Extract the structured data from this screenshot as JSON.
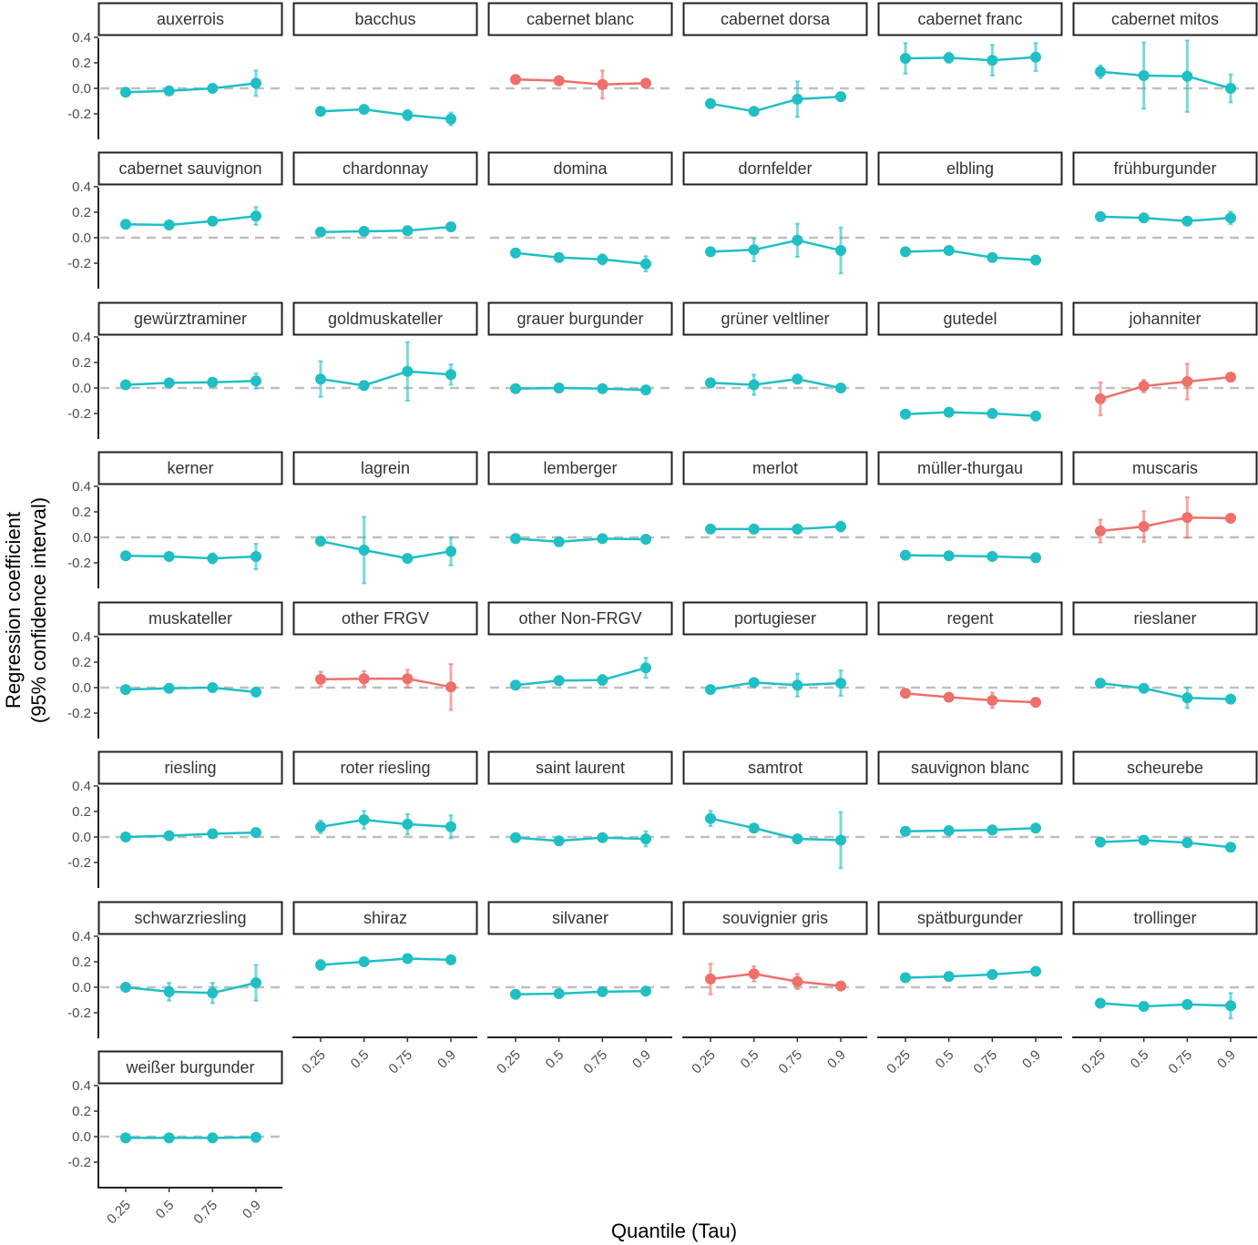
{
  "chart_data": {
    "type": "line",
    "xlabel": "Quantile (Tau)",
    "ylabel_line1": "Regression coefficient",
    "ylabel_line2": "(95% confidence interval)",
    "x_ticks": [
      "0.25",
      "0.5",
      "0.75",
      "0.9"
    ],
    "y_ticks": [
      "0.4",
      "0.2",
      "0.0",
      "-0.2"
    ],
    "y_tick_values": [
      0.4,
      0.2,
      0.0,
      -0.2
    ],
    "ylim": [
      -0.4,
      0.42
    ],
    "reference_line": 0,
    "colors": {
      "teal": "#1fbfc4",
      "red": "#ef6f6a"
    },
    "panels": [
      {
        "name": "auxerrois",
        "color": "teal",
        "values": [
          -0.03,
          -0.02,
          0.0,
          0.04
        ],
        "errors": [
          0.0,
          0.0,
          0.03,
          0.1
        ]
      },
      {
        "name": "bacchus",
        "color": "teal",
        "values": [
          -0.18,
          -0.165,
          -0.21,
          -0.24
        ],
        "errors": [
          0.0,
          0.0,
          0.04,
          0.05
        ]
      },
      {
        "name": "cabernet blanc",
        "color": "red",
        "values": [
          0.07,
          0.06,
          0.03,
          0.04
        ],
        "errors": [
          0.0,
          0.0,
          0.11,
          0.0
        ]
      },
      {
        "name": "cabernet dorsa",
        "color": "teal",
        "values": [
          -0.12,
          -0.18,
          -0.085,
          -0.065
        ],
        "errors": [
          0.0,
          0.0,
          0.14,
          0.0
        ]
      },
      {
        "name": "cabernet franc",
        "color": "teal",
        "values": [
          0.235,
          0.24,
          0.22,
          0.245
        ],
        "errors": [
          0.12,
          0.04,
          0.12,
          0.11
        ]
      },
      {
        "name": "cabernet mitos",
        "color": "teal",
        "values": [
          0.13,
          0.1,
          0.095,
          0.0
        ],
        "errors": [
          0.05,
          0.26,
          0.28,
          0.11
        ]
      },
      {
        "name": "cabernet sauvignon",
        "color": "teal",
        "values": [
          0.105,
          0.1,
          0.13,
          0.17
        ],
        "errors": [
          0.0,
          0.0,
          0.0,
          0.07
        ]
      },
      {
        "name": "chardonnay",
        "color": "teal",
        "values": [
          0.045,
          0.05,
          0.055,
          0.085
        ],
        "errors": [
          0.0,
          0.0,
          0.0,
          0.0
        ]
      },
      {
        "name": "domina",
        "color": "teal",
        "values": [
          -0.12,
          -0.155,
          -0.17,
          -0.205
        ],
        "errors": [
          0.0,
          0.0,
          0.04,
          0.06
        ]
      },
      {
        "name": "dornfelder",
        "color": "teal",
        "values": [
          -0.11,
          -0.095,
          -0.02,
          -0.1
        ],
        "errors": [
          0.0,
          0.09,
          0.13,
          0.18
        ]
      },
      {
        "name": "elbling",
        "color": "teal",
        "values": [
          -0.11,
          -0.1,
          -0.155,
          -0.175
        ],
        "errors": [
          0.0,
          0.0,
          0.0,
          0.0
        ]
      },
      {
        "name": "frühburgunder",
        "color": "teal",
        "values": [
          0.165,
          0.155,
          0.13,
          0.155
        ],
        "errors": [
          0.0,
          0.0,
          0.0,
          0.05
        ]
      },
      {
        "name": "gewürztraminer",
        "color": "teal",
        "values": [
          0.025,
          0.04,
          0.045,
          0.055
        ],
        "errors": [
          0.0,
          0.0,
          0.0,
          0.06
        ]
      },
      {
        "name": "goldmuskateller",
        "color": "teal",
        "values": [
          0.07,
          0.02,
          0.13,
          0.105
        ],
        "errors": [
          0.14,
          0.0,
          0.23,
          0.08
        ]
      },
      {
        "name": "grauer burgunder",
        "color": "teal",
        "values": [
          -0.005,
          0.0,
          -0.005,
          -0.015
        ],
        "errors": [
          0.0,
          0.0,
          0.0,
          0.0
        ]
      },
      {
        "name": "grüner veltliner",
        "color": "teal",
        "values": [
          0.04,
          0.025,
          0.07,
          0.0
        ],
        "errors": [
          0.0,
          0.08,
          0.0,
          0.0
        ]
      },
      {
        "name": "gutedel",
        "color": "teal",
        "values": [
          -0.205,
          -0.19,
          -0.2,
          -0.22
        ],
        "errors": [
          0.0,
          0.0,
          0.0,
          0.0
        ]
      },
      {
        "name": "johanniter",
        "color": "red",
        "values": [
          -0.085,
          0.015,
          0.05,
          0.085
        ],
        "errors": [
          0.13,
          0.05,
          0.14,
          0.0
        ]
      },
      {
        "name": "kerner",
        "color": "teal",
        "values": [
          -0.145,
          -0.15,
          -0.165,
          -0.15
        ],
        "errors": [
          0.0,
          0.0,
          0.04,
          0.1
        ]
      },
      {
        "name": "lagrein",
        "color": "teal",
        "values": [
          -0.03,
          -0.1,
          -0.165,
          -0.11
        ],
        "errors": [
          0.0,
          0.26,
          0.0,
          0.11
        ]
      },
      {
        "name": "lemberger",
        "color": "teal",
        "values": [
          -0.01,
          -0.035,
          -0.01,
          -0.015
        ],
        "errors": [
          0.0,
          0.0,
          0.0,
          0.0
        ]
      },
      {
        "name": "merlot",
        "color": "teal",
        "values": [
          0.065,
          0.065,
          0.065,
          0.085
        ],
        "errors": [
          0.0,
          0.0,
          0.0,
          0.04
        ]
      },
      {
        "name": "müller-thurgau",
        "color": "teal",
        "values": [
          -0.14,
          -0.145,
          -0.15,
          -0.16
        ],
        "errors": [
          0.0,
          0.0,
          0.0,
          0.0
        ]
      },
      {
        "name": "muscaris",
        "color": "red",
        "values": [
          0.05,
          0.085,
          0.155,
          0.15
        ],
        "errors": [
          0.09,
          0.12,
          0.16,
          0.0
        ]
      },
      {
        "name": "muskateller",
        "color": "teal",
        "values": [
          -0.015,
          -0.005,
          0.0,
          -0.035
        ],
        "errors": [
          0.0,
          0.0,
          0.0,
          0.0
        ]
      },
      {
        "name": "other FRGV",
        "color": "red",
        "values": [
          0.065,
          0.07,
          0.07,
          0.005
        ],
        "errors": [
          0.06,
          0.06,
          0.07,
          0.18
        ]
      },
      {
        "name": "other Non-FRGV",
        "color": "teal",
        "values": [
          0.02,
          0.055,
          0.06,
          0.155
        ],
        "errors": [
          0.0,
          0.0,
          0.04,
          0.08
        ]
      },
      {
        "name": "portugieser",
        "color": "teal",
        "values": [
          -0.015,
          0.04,
          0.02,
          0.035
        ],
        "errors": [
          0.0,
          0.0,
          0.09,
          0.1
        ]
      },
      {
        "name": "regent",
        "color": "red",
        "values": [
          -0.045,
          -0.075,
          -0.1,
          -0.115
        ],
        "errors": [
          0.0,
          0.0,
          0.06,
          0.0
        ]
      },
      {
        "name": "rieslaner",
        "color": "teal",
        "values": [
          0.035,
          -0.005,
          -0.08,
          -0.09
        ],
        "errors": [
          0.0,
          0.03,
          0.08,
          0.0
        ]
      },
      {
        "name": "riesling",
        "color": "teal",
        "values": [
          0.0,
          0.01,
          0.025,
          0.035
        ],
        "errors": [
          0.0,
          0.0,
          0.0,
          0.0
        ]
      },
      {
        "name": "roter riesling",
        "color": "teal",
        "values": [
          0.08,
          0.135,
          0.1,
          0.08
        ],
        "errors": [
          0.05,
          0.07,
          0.08,
          0.09
        ]
      },
      {
        "name": "saint laurent",
        "color": "teal",
        "values": [
          -0.005,
          -0.03,
          -0.005,
          -0.015
        ],
        "errors": [
          0.0,
          0.0,
          0.0,
          0.06
        ]
      },
      {
        "name": "samtrot",
        "color": "teal",
        "values": [
          0.145,
          0.07,
          -0.015,
          -0.025
        ],
        "errors": [
          0.06,
          0.0,
          0.0,
          0.22
        ]
      },
      {
        "name": "sauvignon blanc",
        "color": "teal",
        "values": [
          0.045,
          0.05,
          0.055,
          0.07
        ],
        "errors": [
          0.0,
          0.0,
          0.0,
          0.0
        ]
      },
      {
        "name": "scheurebe",
        "color": "teal",
        "values": [
          -0.04,
          -0.025,
          -0.045,
          -0.08
        ],
        "errors": [
          0.0,
          0.0,
          0.0,
          0.0
        ]
      },
      {
        "name": "schwarzriesling",
        "color": "teal",
        "values": [
          0.0,
          -0.035,
          -0.045,
          0.035
        ],
        "errors": [
          0.0,
          0.07,
          0.08,
          0.14
        ]
      },
      {
        "name": "shiraz",
        "color": "teal",
        "values": [
          0.175,
          0.2,
          0.225,
          0.215
        ],
        "errors": [
          0.04,
          0.0,
          0.0,
          0.0
        ]
      },
      {
        "name": "silvaner",
        "color": "teal",
        "values": [
          -0.055,
          -0.05,
          -0.035,
          -0.03
        ],
        "errors": [
          0.0,
          0.0,
          0.0,
          0.0
        ]
      },
      {
        "name": "souvignier gris",
        "color": "red",
        "values": [
          0.065,
          0.105,
          0.045,
          0.01
        ],
        "errors": [
          0.12,
          0.06,
          0.06,
          0.0
        ]
      },
      {
        "name": "spätburgunder",
        "color": "teal",
        "values": [
          0.075,
          0.085,
          0.1,
          0.125
        ],
        "errors": [
          0.0,
          0.0,
          0.0,
          0.0
        ]
      },
      {
        "name": "trollinger",
        "color": "teal",
        "values": [
          -0.125,
          -0.15,
          -0.135,
          -0.145
        ],
        "errors": [
          0.0,
          0.0,
          0.0,
          0.1
        ]
      },
      {
        "name": "weißer burgunder",
        "color": "teal",
        "values": [
          -0.01,
          -0.01,
          -0.01,
          -0.005
        ],
        "errors": [
          0.0,
          0.0,
          0.0,
          0.0
        ]
      }
    ]
  }
}
